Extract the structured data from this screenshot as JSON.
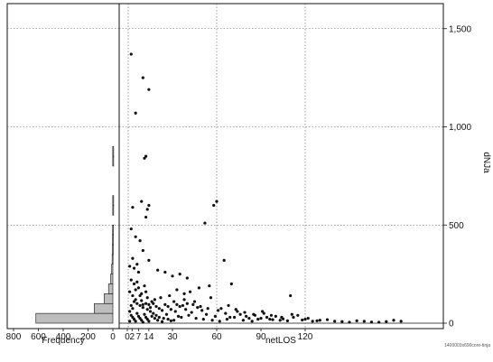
{
  "chart_data": [
    {
      "type": "bar",
      "orientation": "horizontal",
      "xlabel": "Frequency",
      "x_direction": "reversed",
      "xlim": [
        0,
        800
      ],
      "x_ticks": [
        "800",
        "600",
        "400",
        "200",
        "0"
      ],
      "ylim": [
        0,
        1600
      ],
      "bin_width": 50,
      "bins": [
        {
          "y0": 0,
          "y1": 50,
          "count": 620
        },
        {
          "y0": 50,
          "count": 150,
          "y1": 100
        },
        {
          "y0": 100,
          "y1": 150,
          "count": 70
        },
        {
          "y0": 150,
          "y1": 200,
          "count": 35
        },
        {
          "y0": 200,
          "y1": 250,
          "count": 18
        },
        {
          "y0": 250,
          "y1": 300,
          "count": 10
        },
        {
          "y0": 300,
          "y1": 350,
          "count": 6
        },
        {
          "y0": 350,
          "y1": 400,
          "count": 4
        },
        {
          "y0": 400,
          "y1": 450,
          "count": 3
        },
        {
          "y0": 450,
          "y1": 500,
          "count": 2
        },
        {
          "y0": 550,
          "y1": 600,
          "count": 1
        },
        {
          "y0": 600,
          "y1": 650,
          "count": 1
        },
        {
          "y0": 800,
          "y1": 850,
          "count": 1
        },
        {
          "y0": 850,
          "y1": 900,
          "count": 1
        }
      ]
    },
    {
      "type": "scatter",
      "xlabel": "netLOS",
      "ylabel": "dNJa",
      "x_ticks": [
        "0",
        "2",
        "7",
        "14",
        "30",
        "60",
        "90",
        "120"
      ],
      "x_tick_values": [
        0,
        2,
        7,
        14,
        30,
        60,
        90,
        120
      ],
      "xlim": [
        -3,
        190
      ],
      "y_ticks": [
        "0",
        "500",
        "1,000",
        "1,500"
      ],
      "y_tick_values": [
        0,
        500,
        1000,
        1500
      ],
      "ylim": [
        0,
        1600
      ],
      "grid": true,
      "y_axis_side": "right",
      "points": [
        [
          2,
          1370
        ],
        [
          10,
          1250
        ],
        [
          14,
          1190
        ],
        [
          5,
          1070
        ],
        [
          12,
          850
        ],
        [
          11,
          840
        ],
        [
          9,
          620
        ],
        [
          14,
          600
        ],
        [
          13,
          580
        ],
        [
          3,
          590
        ],
        [
          12,
          540
        ],
        [
          60,
          620
        ],
        [
          58,
          600
        ],
        [
          52,
          510
        ],
        [
          2,
          480
        ],
        [
          5,
          440
        ],
        [
          8,
          420
        ],
        [
          10,
          370
        ],
        [
          3,
          330
        ],
        [
          14,
          320
        ],
        [
          6,
          300
        ],
        [
          1,
          290
        ],
        [
          4,
          280
        ],
        [
          20,
          270
        ],
        [
          25,
          260
        ],
        [
          30,
          240
        ],
        [
          35,
          250
        ],
        [
          40,
          230
        ],
        [
          65,
          320
        ],
        [
          70,
          200
        ],
        [
          55,
          190
        ],
        [
          48,
          180
        ],
        [
          42,
          160
        ],
        [
          38,
          150
        ],
        [
          33,
          170
        ],
        [
          28,
          140
        ],
        [
          22,
          130
        ],
        [
          18,
          120
        ],
        [
          16,
          110
        ],
        [
          12,
          100
        ],
        [
          9,
          150
        ],
        [
          7,
          180
        ],
        [
          4,
          200
        ],
        [
          2,
          220
        ],
        [
          1,
          160
        ],
        [
          3,
          140
        ],
        [
          5,
          120
        ],
        [
          6,
          100
        ],
        [
          8,
          90
        ],
        [
          10,
          80
        ],
        [
          13,
          70
        ],
        [
          15,
          60
        ],
        [
          17,
          50
        ],
        [
          19,
          40
        ],
        [
          21,
          30
        ],
        [
          24,
          25
        ],
        [
          27,
          20
        ],
        [
          31,
          15
        ],
        [
          36,
          30
        ],
        [
          41,
          40
        ],
        [
          46,
          25
        ],
        [
          51,
          20
        ],
        [
          57,
          15
        ],
        [
          62,
          10
        ],
        [
          67,
          20
        ],
        [
          72,
          30
        ],
        [
          78,
          15
        ],
        [
          84,
          10
        ],
        [
          90,
          25
        ],
        [
          96,
          20
        ],
        [
          103,
          15
        ],
        [
          110,
          140
        ],
        [
          115,
          40
        ],
        [
          120,
          20
        ],
        [
          125,
          10
        ],
        [
          130,
          15
        ],
        [
          140,
          10
        ],
        [
          150,
          5
        ],
        [
          160,
          10
        ],
        [
          170,
          5
        ],
        [
          180,
          15
        ],
        [
          185,
          10
        ],
        [
          1,
          60
        ],
        [
          2,
          40
        ],
        [
          3,
          30
        ],
        [
          4,
          20
        ],
        [
          5,
          10
        ],
        [
          6,
          50
        ],
        [
          7,
          35
        ],
        [
          8,
          25
        ],
        [
          9,
          15
        ],
        [
          10,
          5
        ],
        [
          11,
          45
        ],
        [
          12,
          30
        ],
        [
          13,
          20
        ],
        [
          14,
          10
        ],
        [
          16,
          35
        ],
        [
          18,
          25
        ],
        [
          20,
          15
        ],
        [
          23,
          8
        ],
        [
          26,
          45
        ],
        [
          29,
          12
        ],
        [
          32,
          60
        ],
        [
          34,
          35
        ],
        [
          37,
          90
        ],
        [
          39,
          70
        ],
        [
          43,
          55
        ],
        [
          45,
          110
        ],
        [
          47,
          80
        ],
        [
          50,
          65
        ],
        [
          53,
          45
        ],
        [
          56,
          130
        ],
        [
          59,
          35
        ],
        [
          63,
          75
        ],
        [
          66,
          50
        ],
        [
          69,
          30
        ],
        [
          74,
          60
        ],
        [
          76,
          45
        ],
        [
          80,
          35
        ],
        [
          82,
          25
        ],
        [
          86,
          40
        ],
        [
          88,
          20
        ],
        [
          92,
          50
        ],
        [
          94,
          30
        ],
        [
          98,
          18
        ],
        [
          100,
          35
        ],
        [
          105,
          22
        ],
        [
          108,
          12
        ],
        [
          112,
          30
        ],
        [
          118,
          16
        ],
        [
          122,
          25
        ],
        [
          128,
          12
        ],
        [
          135,
          18
        ],
        [
          145,
          8
        ],
        [
          155,
          12
        ],
        [
          165,
          6
        ],
        [
          175,
          8
        ],
        [
          1,
          10
        ],
        [
          2,
          90
        ],
        [
          3,
          75
        ],
        [
          4,
          110
        ],
        [
          5,
          170
        ],
        [
          6,
          210
        ],
        [
          7,
          260
        ],
        [
          8,
          140
        ],
        [
          9,
          115
        ],
        [
          10,
          95
        ],
        [
          11,
          190
        ],
        [
          12,
          160
        ],
        [
          13,
          130
        ],
        [
          14,
          95
        ],
        [
          15,
          80
        ],
        [
          17,
          100
        ],
        [
          19,
          85
        ],
        [
          21,
          75
        ],
        [
          23,
          65
        ],
        [
          25,
          95
        ],
        [
          27,
          85
        ],
        [
          29,
          70
        ],
        [
          31,
          110
        ],
        [
          33,
          95
        ],
        [
          35,
          85
        ],
        [
          38,
          120
        ],
        [
          40,
          100
        ],
        [
          44,
          95
        ],
        [
          49,
          85
        ],
        [
          54,
          75
        ],
        [
          61,
          65
        ],
        [
          68,
          90
        ],
        [
          73,
          70
        ],
        [
          79,
          55
        ],
        [
          85,
          45
        ],
        [
          91,
          60
        ],
        [
          97,
          40
        ],
        [
          104,
          30
        ],
        [
          111,
          45
        ]
      ],
      "footnote": "1400003x690core-tinja"
    }
  ]
}
